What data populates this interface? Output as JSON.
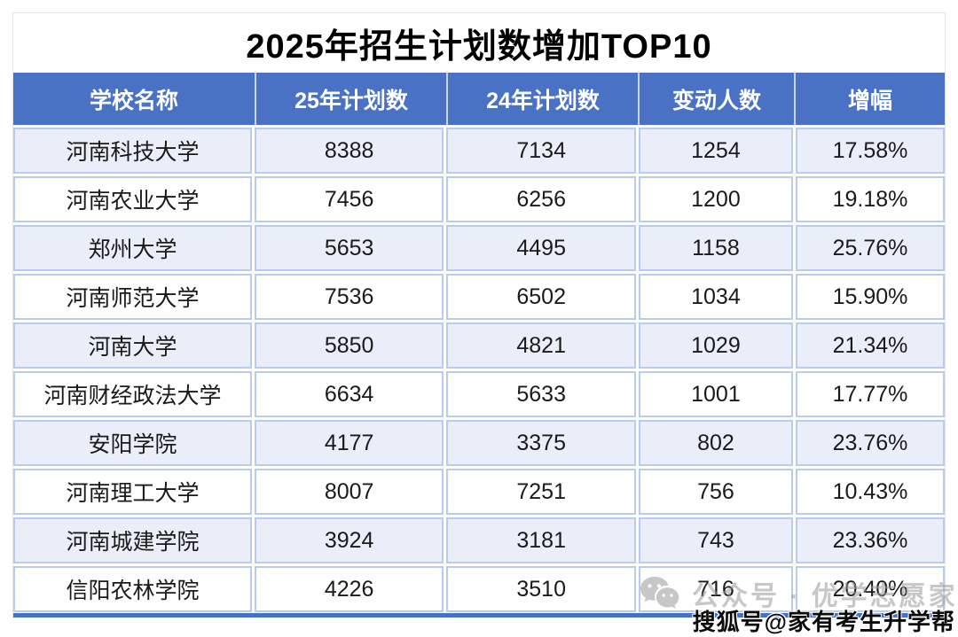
{
  "title": "2025年招生计划数增加TOP10",
  "table": {
    "columns": [
      "学校名称",
      "25年计划数",
      "24年计划数",
      "变动人数",
      "增幅"
    ],
    "rows": [
      [
        "河南科技大学",
        "8388",
        "7134",
        "1254",
        "17.58%"
      ],
      [
        "河南农业大学",
        "7456",
        "6256",
        "1200",
        "19.18%"
      ],
      [
        "郑州大学",
        "5653",
        "4495",
        "1158",
        "25.76%"
      ],
      [
        "河南师范大学",
        "7536",
        "6502",
        "1034",
        "15.90%"
      ],
      [
        "河南大学",
        "5850",
        "4821",
        "1029",
        "21.34%"
      ],
      [
        "河南财经政法大学",
        "6634",
        "5633",
        "1001",
        "17.77%"
      ],
      [
        "安阳学院",
        "4177",
        "3375",
        "802",
        "23.76%"
      ],
      [
        "河南理工大学",
        "8007",
        "7251",
        "756",
        "10.43%"
      ],
      [
        "河南城建学院",
        "3924",
        "3181",
        "743",
        "23.36%"
      ],
      [
        "信阳农林学院",
        "4226",
        "3510",
        "716",
        "20.40%"
      ]
    ]
  },
  "watermarks": {
    "wechat_icon": "wechat-icon",
    "wechat_label": "公众号 · 优学志愿家",
    "sohu_label": "搜狐号@家有考生升学帮"
  },
  "colors": {
    "header_bg": "#4A72C4",
    "header_text": "#FFFFFF",
    "row_alt_bg": "#EAEEF8",
    "row_bg": "#FFFFFF",
    "cell_border": "#B9CCEE",
    "bottom_border": "#4472C4",
    "panel_border": "#E4E4E4",
    "title_color": "#000000",
    "watermark_gray": "#9B9B9B"
  },
  "chart_data": {
    "type": "table",
    "title": "2025年招生计划数增加TOP10",
    "columns": [
      "学校名称",
      "25年计划数",
      "24年计划数",
      "变动人数",
      "增幅"
    ],
    "rows": [
      {
        "school": "河南科技大学",
        "plan_2025": 8388,
        "plan_2024": 7134,
        "change": 1254,
        "growth_pct": 17.58
      },
      {
        "school": "河南农业大学",
        "plan_2025": 7456,
        "plan_2024": 6256,
        "change": 1200,
        "growth_pct": 19.18
      },
      {
        "school": "郑州大学",
        "plan_2025": 5653,
        "plan_2024": 4495,
        "change": 1158,
        "growth_pct": 25.76
      },
      {
        "school": "河南师范大学",
        "plan_2025": 7536,
        "plan_2024": 6502,
        "change": 1034,
        "growth_pct": 15.9
      },
      {
        "school": "河南大学",
        "plan_2025": 5850,
        "plan_2024": 4821,
        "change": 1029,
        "growth_pct": 21.34
      },
      {
        "school": "河南财经政法大学",
        "plan_2025": 6634,
        "plan_2024": 5633,
        "change": 1001,
        "growth_pct": 17.77
      },
      {
        "school": "安阳学院",
        "plan_2025": 4177,
        "plan_2024": 3375,
        "change": 802,
        "growth_pct": 23.76
      },
      {
        "school": "河南理工大学",
        "plan_2025": 8007,
        "plan_2024": 7251,
        "change": 756,
        "growth_pct": 10.43
      },
      {
        "school": "河南城建学院",
        "plan_2025": 3924,
        "plan_2024": 3181,
        "change": 743,
        "growth_pct": 23.36
      },
      {
        "school": "信阳农林学院",
        "plan_2025": 4226,
        "plan_2024": 3510,
        "change": 716,
        "growth_pct": 20.4
      }
    ]
  }
}
